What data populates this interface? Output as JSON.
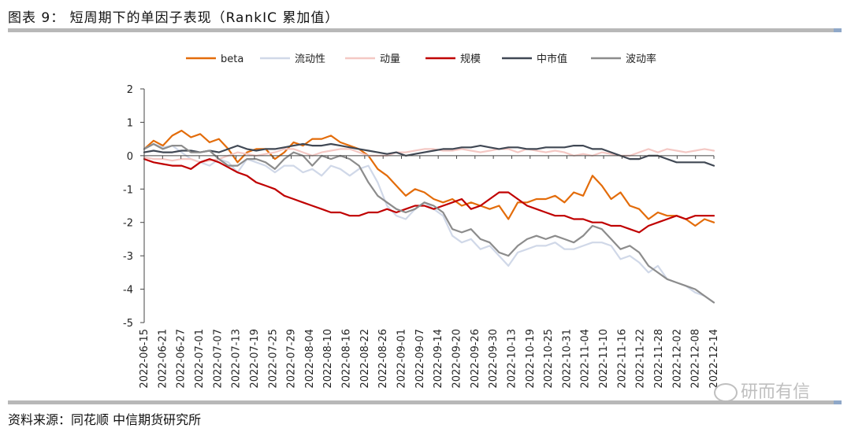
{
  "title": "图表 9：  短周期下的单因子表现（RankIC 累加值）",
  "source": "资料来源：同花顺   中信期货研究所",
  "watermark": "研而有信",
  "chart_data": {
    "type": "line",
    "title": "短周期下的单因子表现（RankIC 累加值）",
    "ylim": [
      -5,
      2
    ],
    "yticks": [
      2,
      1,
      0,
      -1,
      -2,
      -3,
      -4,
      -5
    ],
    "xticks": [
      "2022-06-15",
      "2022-06-21",
      "2022-06-27",
      "2022-07-01",
      "2022-07-07",
      "2022-07-13",
      "2022-07-19",
      "2022-07-25",
      "2022-07-29",
      "2022-08-04",
      "2022-08-10",
      "2022-08-16",
      "2022-08-22",
      "2022-08-26",
      "2022-09-01",
      "2022-09-07",
      "2022-09-14",
      "2022-09-20",
      "2022-09-26",
      "2022-09-30",
      "2022-10-13",
      "2022-10-19",
      "2022-10-25",
      "2022-10-31",
      "2022-11-04",
      "2022-11-10",
      "2022-11-16",
      "2022-11-22",
      "2022-11-28",
      "2022-12-02",
      "2022-12-08",
      "2022-12-14"
    ],
    "legend_position": "top-center",
    "series": [
      {
        "name": "beta",
        "color": "#e36c0a",
        "values": [
          0.2,
          0.45,
          0.3,
          0.6,
          0.75,
          0.55,
          0.65,
          0.4,
          0.5,
          0.2,
          -0.2,
          0.1,
          0.2,
          0.2,
          -0.1,
          0.1,
          0.4,
          0.3,
          0.5,
          0.5,
          0.6,
          0.4,
          0.3,
          0.2,
          0.0,
          -0.4,
          -0.6,
          -0.9,
          -1.2,
          -1.0,
          -1.1,
          -1.3,
          -1.4,
          -1.3,
          -1.5,
          -1.4,
          -1.5,
          -1.6,
          -1.5,
          -1.9,
          -1.4,
          -1.4,
          -1.3,
          -1.3,
          -1.2,
          -1.4,
          -1.1,
          -1.2,
          -0.6,
          -0.9,
          -1.3,
          -1.1,
          -1.5,
          -1.6,
          -1.9,
          -1.7,
          -1.8,
          -1.8,
          -1.9,
          -2.1,
          -1.9,
          -2.0
        ]
      },
      {
        "name": "流动性",
        "color": "#d0d8e8",
        "values": [
          0.2,
          0.35,
          0.25,
          0.3,
          0.1,
          -0.1,
          -0.2,
          -0.3,
          -0.1,
          -0.2,
          -0.5,
          -0.1,
          -0.2,
          -0.3,
          -0.5,
          -0.3,
          -0.3,
          -0.5,
          -0.4,
          -0.6,
          -0.3,
          -0.4,
          -0.6,
          -0.4,
          -0.3,
          -0.8,
          -1.5,
          -1.8,
          -1.9,
          -1.6,
          -1.4,
          -1.6,
          -1.8,
          -2.4,
          -2.6,
          -2.5,
          -2.8,
          -2.7,
          -3.0,
          -3.3,
          -2.9,
          -2.8,
          -2.7,
          -2.7,
          -2.6,
          -2.8,
          -2.8,
          -2.7,
          -2.6,
          -2.6,
          -2.7,
          -3.1,
          -3.0,
          -3.2,
          -3.5,
          -3.3,
          -3.7,
          -3.8,
          -3.9,
          -4.1,
          -4.2,
          -4.4
        ]
      },
      {
        "name": "动量",
        "color": "#f4c8c4",
        "values": [
          -0.05,
          -0.1,
          -0.1,
          -0.15,
          -0.1,
          -0.1,
          -0.2,
          -0.15,
          -0.1,
          0.0,
          0.1,
          0.05,
          0.0,
          0.05,
          0.1,
          0.2,
          0.2,
          0.1,
          0.0,
          0.1,
          0.15,
          0.2,
          0.2,
          0.1,
          0.0,
          0.0,
          0.0,
          0.1,
          0.1,
          0.15,
          0.2,
          0.2,
          0.15,
          0.15,
          0.2,
          0.15,
          0.1,
          0.15,
          0.2,
          0.2,
          0.1,
          0.2,
          0.15,
          0.1,
          0.15,
          0.1,
          0.0,
          0.05,
          0.0,
          0.1,
          0.05,
          0.0,
          0.0,
          0.1,
          0.2,
          0.1,
          0.2,
          0.15,
          0.1,
          0.15,
          0.2,
          0.15
        ]
      },
      {
        "name": "规模",
        "color": "#c00000",
        "values": [
          -0.1,
          -0.2,
          -0.25,
          -0.3,
          -0.3,
          -0.4,
          -0.2,
          -0.1,
          -0.2,
          -0.35,
          -0.5,
          -0.6,
          -0.8,
          -0.9,
          -1.0,
          -1.2,
          -1.3,
          -1.4,
          -1.5,
          -1.6,
          -1.7,
          -1.7,
          -1.8,
          -1.8,
          -1.7,
          -1.7,
          -1.6,
          -1.7,
          -1.6,
          -1.5,
          -1.5,
          -1.6,
          -1.5,
          -1.4,
          -1.3,
          -1.6,
          -1.5,
          -1.3,
          -1.1,
          -1.1,
          -1.3,
          -1.5,
          -1.6,
          -1.7,
          -1.8,
          -1.8,
          -1.9,
          -1.9,
          -2.0,
          -2.0,
          -2.1,
          -2.1,
          -2.2,
          -2.3,
          -2.1,
          -2.0,
          -1.9,
          -1.8,
          -1.9,
          -1.8,
          -1.8,
          -1.8
        ]
      },
      {
        "name": "中市值",
        "color": "#404854",
        "values": [
          0.1,
          0.15,
          0.1,
          0.1,
          0.15,
          0.15,
          0.1,
          0.15,
          0.1,
          0.2,
          0.3,
          0.2,
          0.15,
          0.2,
          0.2,
          0.25,
          0.3,
          0.35,
          0.3,
          0.3,
          0.35,
          0.3,
          0.25,
          0.2,
          0.15,
          0.1,
          0.05,
          0.1,
          0.0,
          0.05,
          0.1,
          0.15,
          0.2,
          0.2,
          0.25,
          0.25,
          0.3,
          0.25,
          0.2,
          0.25,
          0.25,
          0.2,
          0.2,
          0.25,
          0.25,
          0.25,
          0.3,
          0.3,
          0.2,
          0.2,
          0.1,
          0.0,
          -0.1,
          -0.1,
          0.0,
          0.0,
          -0.1,
          -0.2,
          -0.2,
          -0.2,
          -0.2,
          -0.3
        ]
      },
      {
        "name": "波动率",
        "color": "#8c8c8c",
        "values": [
          0.2,
          0.35,
          0.2,
          0.3,
          0.3,
          0.1,
          0.1,
          0.15,
          -0.1,
          -0.3,
          -0.3,
          -0.1,
          -0.1,
          -0.2,
          -0.4,
          -0.1,
          0.1,
          0.0,
          -0.3,
          0.0,
          -0.1,
          0.0,
          -0.1,
          -0.3,
          -0.8,
          -1.2,
          -1.4,
          -1.6,
          -1.7,
          -1.6,
          -1.4,
          -1.5,
          -1.7,
          -2.2,
          -2.3,
          -2.2,
          -2.5,
          -2.6,
          -2.9,
          -3.0,
          -2.7,
          -2.5,
          -2.4,
          -2.5,
          -2.4,
          -2.5,
          -2.6,
          -2.4,
          -2.1,
          -2.2,
          -2.5,
          -2.8,
          -2.7,
          -2.9,
          -3.3,
          -3.5,
          -3.7,
          -3.8,
          -3.9,
          -4.0,
          -4.2,
          -4.4
        ]
      }
    ]
  }
}
